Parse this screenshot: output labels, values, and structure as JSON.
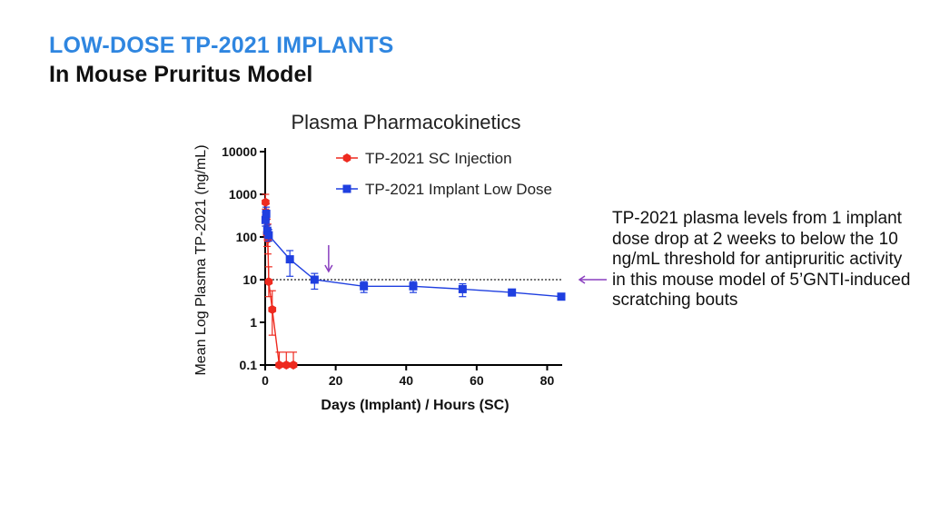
{
  "slide": {
    "title": "LOW-DOSE TP-2021 IMPLANTS",
    "subtitle": "In Mouse Pruritus Model",
    "callout": "TP-2021 plasma levels from 1 implant dose drop at 2 weeks to below the 10 ng/mL threshold for antipruritic activity in this mouse model of 5’GNTI-induced scratching bouts"
  },
  "colors": {
    "title": "#2f86e0",
    "sc": "#ee2a1f",
    "implant": "#1f3fe0",
    "arrow": "#8a3fbf"
  },
  "chart_data": {
    "type": "scatter",
    "title": "Plasma Pharmacokinetics",
    "xlabel": "Days (Implant) / Hours (SC)",
    "ylabel": "Mean Log Plasma TP-2021 (ng/mL)",
    "yscale": "log",
    "xlim": [
      0,
      84
    ],
    "ylim": [
      0.1,
      10000
    ],
    "x_ticks": [
      "0",
      "20",
      "40",
      "60",
      "80"
    ],
    "y_ticks": [
      "0.1",
      "1",
      "10",
      "100",
      "1000",
      "10000"
    ],
    "threshold": 10,
    "annotation_arrow_x": 18,
    "legend_position": "top-right",
    "series": [
      {
        "name": "TP-2021 SC Injection",
        "color": "#ee2a1f",
        "marker": "hexagon",
        "x": [
          0.1,
          0.25,
          0.5,
          0.75,
          1,
          2,
          4,
          6,
          8
        ],
        "y": [
          650,
          300,
          120,
          90,
          9,
          2,
          0.1,
          0.1,
          0.1
        ],
        "err_up": [
          1000,
          600,
          260,
          200,
          20,
          5.5,
          0.2,
          0.2,
          0.2
        ],
        "err_down": [
          450,
          180,
          60,
          40,
          4,
          0.5,
          0.1,
          0.1,
          0.1
        ]
      },
      {
        "name": "TP-2021 Implant Low Dose",
        "color": "#1f3fe0",
        "marker": "square",
        "x": [
          0.1,
          0.3,
          0.6,
          1,
          7,
          14,
          28,
          42,
          56,
          70,
          84
        ],
        "y": [
          250,
          350,
          140,
          110,
          30,
          10,
          7,
          7,
          6,
          5,
          4
        ],
        "err_up": [
          380,
          500,
          190,
          150,
          48,
          14,
          9,
          9,
          8,
          5.5,
          4.4
        ],
        "err_down": [
          180,
          250,
          100,
          80,
          12,
          6,
          5,
          5,
          4,
          4.5,
          3.6
        ]
      }
    ]
  }
}
